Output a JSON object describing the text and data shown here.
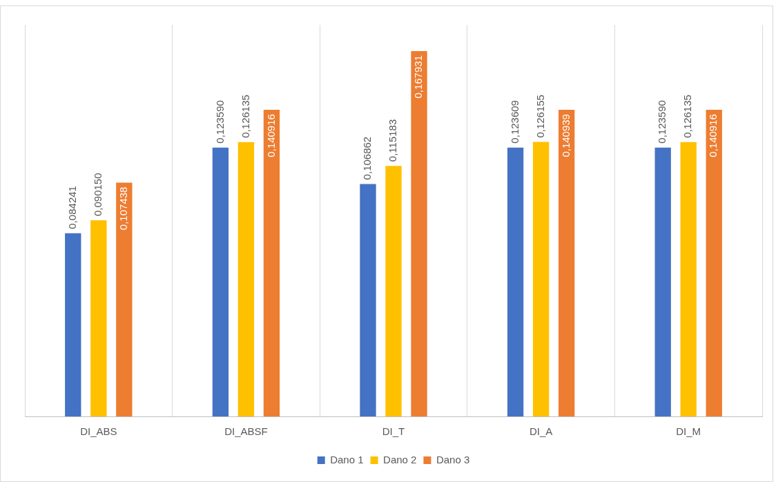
{
  "chart_data": {
    "type": "bar",
    "categories": [
      "DI_ABS",
      "DI_ABSF",
      "DI_T",
      "DI_A",
      "DI_M"
    ],
    "series": [
      {
        "name": "Dano 1",
        "color": "#4472c4",
        "values": [
          0.084241,
          0.12359,
          0.106862,
          0.123609,
          0.12359
        ],
        "value_labels": [
          "0,084241",
          "0,123590",
          "0,106862",
          "0,123609",
          "0,123590"
        ]
      },
      {
        "name": "Dano 2",
        "color": "#ffc000",
        "values": [
          0.09015,
          0.126135,
          0.115183,
          0.126155,
          0.126135
        ],
        "value_labels": [
          "0,090150",
          "0,126135",
          "0,115183",
          "0,126155",
          "0,126135"
        ]
      },
      {
        "name": "Dano 3",
        "color": "#ed7d31",
        "values": [
          0.107438,
          0.140916,
          0.167931,
          0.140939,
          0.140916
        ],
        "value_labels": [
          "0,107438",
          "0,140916",
          "0,167931",
          "0,140939",
          "0,140916"
        ]
      }
    ],
    "grid": "x",
    "legend": "bottom",
    "tick_labels": "x"
  }
}
